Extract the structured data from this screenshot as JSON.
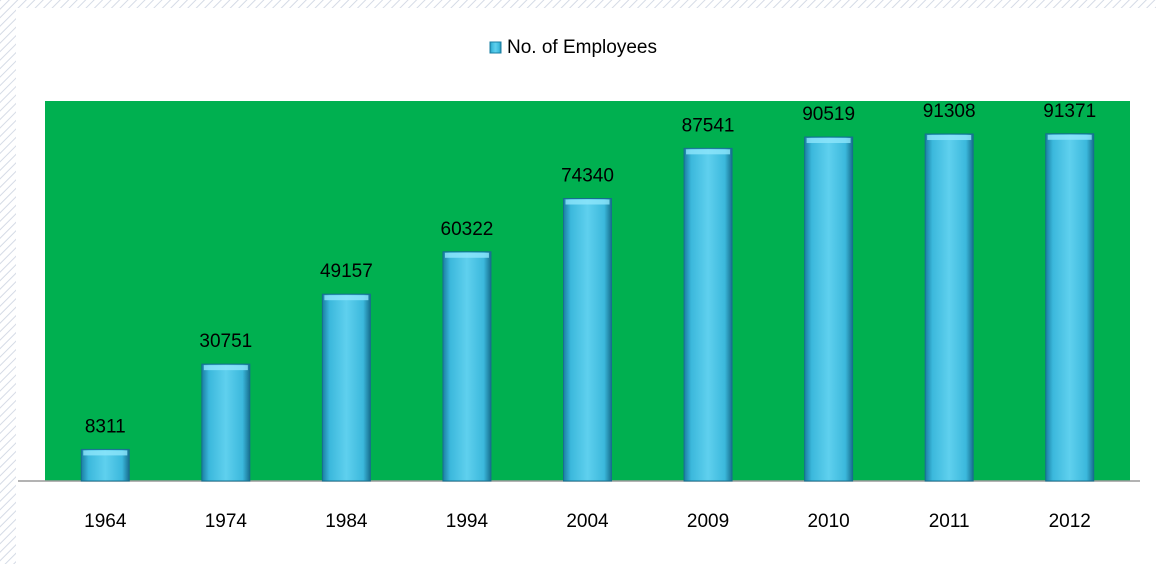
{
  "chart_data": {
    "type": "bar",
    "categories": [
      "1964",
      "1974",
      "1984",
      "1994",
      "2004",
      "2009",
      "2010",
      "2011",
      "2012"
    ],
    "series": [
      {
        "name": "No. of Employees",
        "color": "#3bb8dc",
        "values": [
          8311,
          30751,
          49157,
          60322,
          74340,
          87541,
          90519,
          91308,
          91371
        ]
      }
    ],
    "ylim": [
      0,
      100000
    ],
    "plot_background": "#00b050"
  }
}
